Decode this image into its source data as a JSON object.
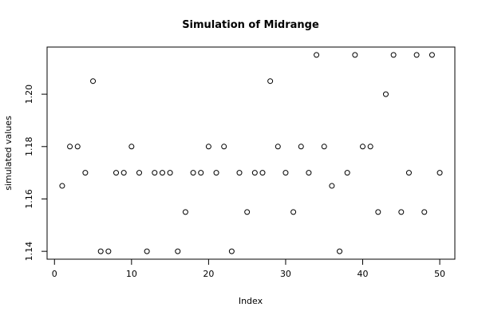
{
  "chart_data": {
    "type": "scatter",
    "title": "Simulation of Midrange",
    "x_label": "Index",
    "y_label": "simulated values",
    "x": [
      1,
      2,
      3,
      4,
      5,
      6,
      7,
      8,
      9,
      10,
      11,
      12,
      13,
      14,
      15,
      16,
      17,
      18,
      19,
      20,
      21,
      22,
      23,
      24,
      25,
      26,
      27,
      28,
      29,
      30,
      31,
      32,
      33,
      34,
      35,
      36,
      37,
      38,
      39,
      40,
      41,
      42,
      43,
      44,
      45,
      46,
      47,
      48,
      49,
      50
    ],
    "values": [
      1.165,
      1.18,
      1.18,
      1.17,
      1.205,
      1.14,
      1.14,
      1.17,
      1.17,
      1.18,
      1.17,
      1.14,
      1.17,
      1.17,
      1.17,
      1.14,
      1.155,
      1.17,
      1.17,
      1.18,
      1.17,
      1.18,
      1.14,
      1.17,
      1.155,
      1.17,
      1.17,
      1.205,
      1.18,
      1.17,
      1.155,
      1.18,
      1.17,
      1.215,
      1.18,
      1.165,
      1.14,
      1.17,
      1.215,
      1.18,
      1.18,
      1.155,
      1.2,
      1.215,
      1.155,
      1.17,
      1.215,
      1.155,
      1.215,
      1.17
    ],
    "color": "#000000",
    "xlim": [
      -0.96,
      51.96
    ],
    "ylim": [
      1.137,
      1.218
    ],
    "xticks": [
      0,
      10,
      20,
      30,
      40,
      50
    ],
    "yticks": [
      1.14,
      1.16,
      1.18,
      {
        "value": 1.2,
        "label": "1.20"
      }
    ]
  }
}
